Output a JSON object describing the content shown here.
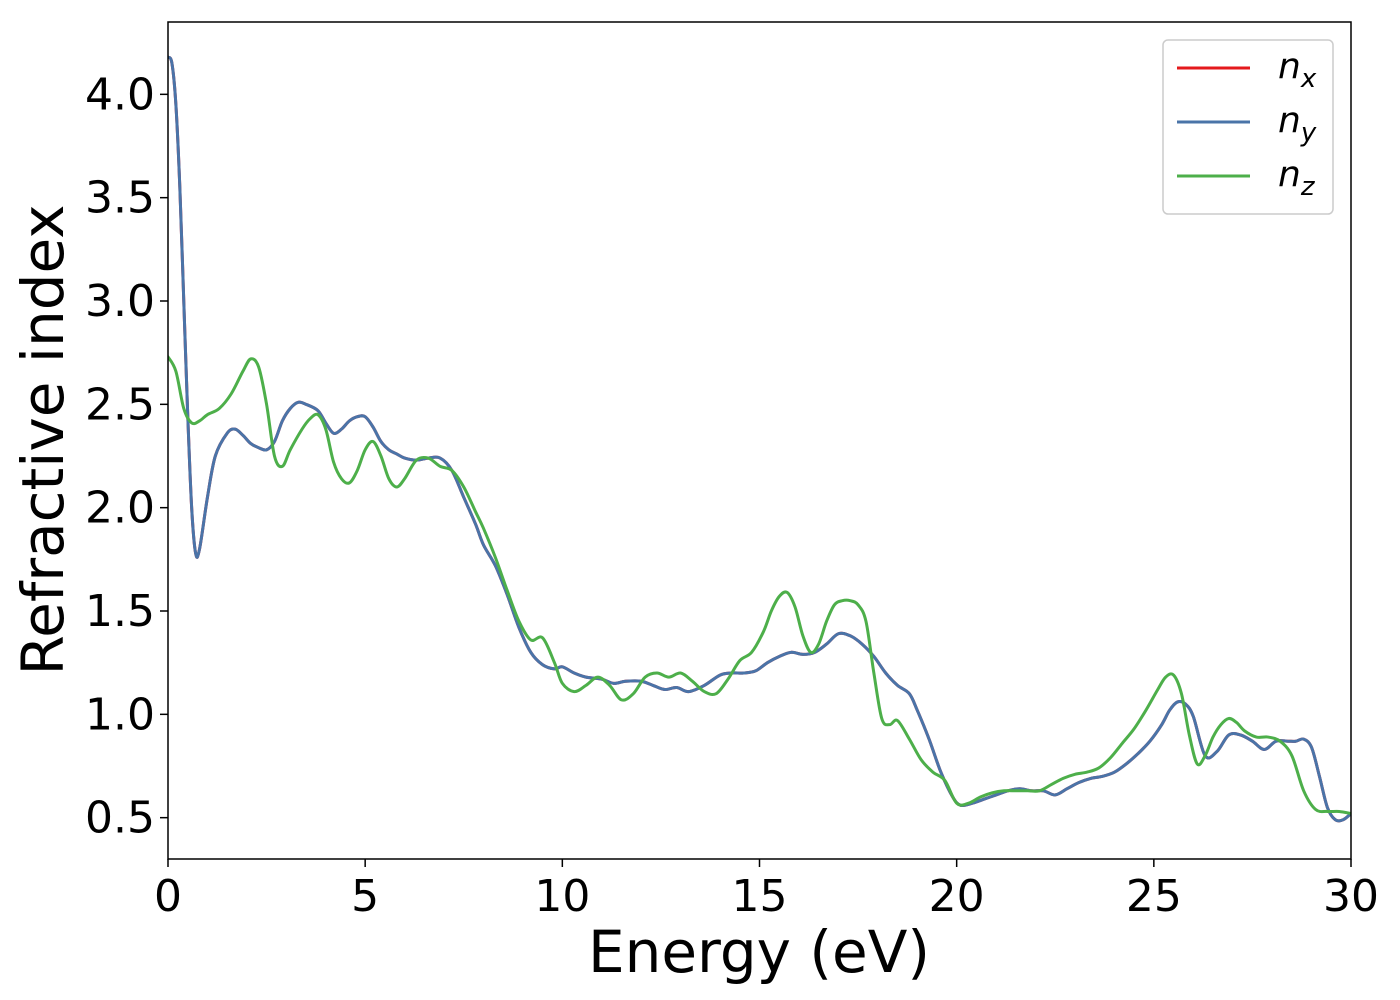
{
  "chart_data": {
    "type": "line",
    "title": "",
    "xlabel": "Energy (eV)",
    "ylabel": "Refractive index",
    "xlim": [
      0,
      30
    ],
    "ylim": [
      0.3,
      4.35
    ],
    "xticks": [
      0,
      5,
      10,
      15,
      20,
      25,
      30
    ],
    "yticks": [
      0.5,
      1.0,
      1.5,
      2.0,
      2.5,
      3.0,
      3.5,
      4.0
    ],
    "xtick_labels": [
      "0",
      "5",
      "10",
      "15",
      "20",
      "25",
      "30"
    ],
    "ytick_labels": [
      "0.5",
      "1.0",
      "1.5",
      "2.0",
      "2.5",
      "3.0",
      "3.5",
      "4.0"
    ],
    "grid": false,
    "legend": {
      "position": "top-right",
      "entries": [
        {
          "base": "n",
          "sub": "x",
          "color": "#e41a1c"
        },
        {
          "base": "n",
          "sub": "y",
          "color": "#4a74a8"
        },
        {
          "base": "n",
          "sub": "z",
          "color": "#4daf4a"
        }
      ]
    },
    "series": [
      {
        "name": "n_x",
        "color": "#e41a1c",
        "x": [
          0,
          0.1,
          0.2,
          0.3,
          0.4,
          0.5,
          0.6,
          0.7,
          0.8,
          1.0,
          1.2,
          1.5,
          1.7,
          1.9,
          2.1,
          2.3,
          2.5,
          2.7,
          2.9,
          3.1,
          3.3,
          3.5,
          3.8,
          4.0,
          4.2,
          4.4,
          4.6,
          4.8,
          5.0,
          5.2,
          5.4,
          5.6,
          5.8,
          6.0,
          6.3,
          6.6,
          6.9,
          7.2,
          7.5,
          7.8,
          8.0,
          8.3,
          8.6,
          8.9,
          9.2,
          9.5,
          9.8,
          10.0,
          10.3,
          10.6,
          11.0,
          11.3,
          11.6,
          12.0,
          12.3,
          12.6,
          12.9,
          13.2,
          13.6,
          14.0,
          14.3,
          14.6,
          14.9,
          15.2,
          15.5,
          15.8,
          16.1,
          16.4,
          16.7,
          17.0,
          17.3,
          17.6,
          17.9,
          18.2,
          18.5,
          18.8,
          19.0,
          19.3,
          19.6,
          19.9,
          20.1,
          20.4,
          20.7,
          21.0,
          21.3,
          21.6,
          21.9,
          22.2,
          22.5,
          22.8,
          23.1,
          23.4,
          23.7,
          24.0,
          24.3,
          24.6,
          24.9,
          25.2,
          25.4,
          25.6,
          25.8,
          26.0,
          26.3,
          26.6,
          26.9,
          27.2,
          27.5,
          27.8,
          28.1,
          28.4,
          28.6,
          28.8,
          29.0,
          29.2,
          29.4,
          29.6,
          29.8,
          30.0
        ],
        "y": [
          4.18,
          4.15,
          3.95,
          3.55,
          3.0,
          2.45,
          2.0,
          1.78,
          1.8,
          2.05,
          2.25,
          2.36,
          2.38,
          2.35,
          2.31,
          2.29,
          2.28,
          2.32,
          2.42,
          2.48,
          2.51,
          2.5,
          2.47,
          2.41,
          2.36,
          2.38,
          2.42,
          2.44,
          2.44,
          2.39,
          2.32,
          2.28,
          2.26,
          2.24,
          2.23,
          2.24,
          2.24,
          2.18,
          2.05,
          1.92,
          1.82,
          1.72,
          1.58,
          1.42,
          1.3,
          1.24,
          1.22,
          1.23,
          1.2,
          1.18,
          1.17,
          1.15,
          1.16,
          1.16,
          1.14,
          1.12,
          1.13,
          1.11,
          1.14,
          1.19,
          1.2,
          1.2,
          1.21,
          1.25,
          1.28,
          1.3,
          1.29,
          1.3,
          1.34,
          1.39,
          1.38,
          1.34,
          1.28,
          1.2,
          1.14,
          1.1,
          1.02,
          0.88,
          0.72,
          0.6,
          0.56,
          0.57,
          0.59,
          0.61,
          0.63,
          0.64,
          0.63,
          0.63,
          0.61,
          0.64,
          0.67,
          0.69,
          0.7,
          0.72,
          0.76,
          0.81,
          0.87,
          0.95,
          1.02,
          1.06,
          1.05,
          0.99,
          0.8,
          0.82,
          0.9,
          0.9,
          0.87,
          0.83,
          0.87,
          0.87,
          0.87,
          0.88,
          0.84,
          0.7,
          0.55,
          0.49,
          0.49,
          0.52
        ]
      },
      {
        "name": "n_y",
        "color": "#4a74a8",
        "x": [
          0,
          0.1,
          0.2,
          0.3,
          0.4,
          0.5,
          0.6,
          0.7,
          0.8,
          1.0,
          1.2,
          1.5,
          1.7,
          1.9,
          2.1,
          2.3,
          2.5,
          2.7,
          2.9,
          3.1,
          3.3,
          3.5,
          3.8,
          4.0,
          4.2,
          4.4,
          4.6,
          4.8,
          5.0,
          5.2,
          5.4,
          5.6,
          5.8,
          6.0,
          6.3,
          6.6,
          6.9,
          7.2,
          7.5,
          7.8,
          8.0,
          8.3,
          8.6,
          8.9,
          9.2,
          9.5,
          9.8,
          10.0,
          10.3,
          10.6,
          11.0,
          11.3,
          11.6,
          12.0,
          12.3,
          12.6,
          12.9,
          13.2,
          13.6,
          14.0,
          14.3,
          14.6,
          14.9,
          15.2,
          15.5,
          15.8,
          16.1,
          16.4,
          16.7,
          17.0,
          17.3,
          17.6,
          17.9,
          18.2,
          18.5,
          18.8,
          19.0,
          19.3,
          19.6,
          19.9,
          20.1,
          20.4,
          20.7,
          21.0,
          21.3,
          21.6,
          21.9,
          22.2,
          22.5,
          22.8,
          23.1,
          23.4,
          23.7,
          24.0,
          24.3,
          24.6,
          24.9,
          25.2,
          25.4,
          25.6,
          25.8,
          26.0,
          26.3,
          26.6,
          26.9,
          27.2,
          27.5,
          27.8,
          28.1,
          28.4,
          28.6,
          28.8,
          29.0,
          29.2,
          29.4,
          29.6,
          29.8,
          30.0
        ],
        "y": [
          4.18,
          4.15,
          3.95,
          3.55,
          3.0,
          2.45,
          2.0,
          1.78,
          1.8,
          2.05,
          2.25,
          2.36,
          2.38,
          2.35,
          2.31,
          2.29,
          2.28,
          2.32,
          2.42,
          2.48,
          2.51,
          2.5,
          2.47,
          2.41,
          2.36,
          2.38,
          2.42,
          2.44,
          2.44,
          2.39,
          2.32,
          2.28,
          2.26,
          2.24,
          2.23,
          2.24,
          2.24,
          2.18,
          2.05,
          1.92,
          1.82,
          1.72,
          1.58,
          1.42,
          1.3,
          1.24,
          1.22,
          1.23,
          1.2,
          1.18,
          1.17,
          1.15,
          1.16,
          1.16,
          1.14,
          1.12,
          1.13,
          1.11,
          1.14,
          1.19,
          1.2,
          1.2,
          1.21,
          1.25,
          1.28,
          1.3,
          1.29,
          1.3,
          1.34,
          1.39,
          1.38,
          1.34,
          1.28,
          1.2,
          1.14,
          1.1,
          1.02,
          0.88,
          0.72,
          0.6,
          0.56,
          0.57,
          0.59,
          0.61,
          0.63,
          0.64,
          0.63,
          0.63,
          0.61,
          0.64,
          0.67,
          0.69,
          0.7,
          0.72,
          0.76,
          0.81,
          0.87,
          0.95,
          1.02,
          1.06,
          1.05,
          0.99,
          0.8,
          0.82,
          0.9,
          0.9,
          0.87,
          0.83,
          0.87,
          0.87,
          0.87,
          0.88,
          0.84,
          0.7,
          0.55,
          0.49,
          0.49,
          0.52
        ]
      },
      {
        "name": "n_z",
        "color": "#4daf4a",
        "x": [
          0,
          0.2,
          0.4,
          0.6,
          0.8,
          1.0,
          1.3,
          1.6,
          1.9,
          2.1,
          2.3,
          2.5,
          2.7,
          2.9,
          3.1,
          3.4,
          3.6,
          3.8,
          4.0,
          4.2,
          4.4,
          4.6,
          4.8,
          5.0,
          5.2,
          5.4,
          5.6,
          5.8,
          6.0,
          6.3,
          6.6,
          6.9,
          7.2,
          7.5,
          7.8,
          8.0,
          8.3,
          8.6,
          8.9,
          9.2,
          9.5,
          9.8,
          10.0,
          10.3,
          10.6,
          10.9,
          11.2,
          11.5,
          11.8,
          12.1,
          12.4,
          12.7,
          13.0,
          13.3,
          13.6,
          13.9,
          14.2,
          14.5,
          14.8,
          15.1,
          15.3,
          15.5,
          15.7,
          15.9,
          16.1,
          16.3,
          16.5,
          16.7,
          16.9,
          17.1,
          17.3,
          17.5,
          17.7,
          17.9,
          18.1,
          18.3,
          18.5,
          18.8,
          19.1,
          19.4,
          19.7,
          20.0,
          20.3,
          20.6,
          20.9,
          21.2,
          21.5,
          21.8,
          22.1,
          22.4,
          22.7,
          23.0,
          23.3,
          23.6,
          23.9,
          24.2,
          24.5,
          24.8,
          25.1,
          25.3,
          25.5,
          25.7,
          25.9,
          26.1,
          26.3,
          26.5,
          26.7,
          26.9,
          27.1,
          27.3,
          27.6,
          27.9,
          28.2,
          28.5,
          28.8,
          29.1,
          29.4,
          29.7,
          30.0
        ],
        "y": [
          2.73,
          2.66,
          2.48,
          2.41,
          2.42,
          2.45,
          2.48,
          2.55,
          2.66,
          2.72,
          2.68,
          2.5,
          2.25,
          2.2,
          2.28,
          2.38,
          2.43,
          2.45,
          2.38,
          2.22,
          2.14,
          2.12,
          2.18,
          2.28,
          2.32,
          2.25,
          2.14,
          2.1,
          2.14,
          2.23,
          2.24,
          2.2,
          2.18,
          2.1,
          1.98,
          1.9,
          1.76,
          1.6,
          1.45,
          1.36,
          1.37,
          1.25,
          1.15,
          1.11,
          1.14,
          1.18,
          1.14,
          1.07,
          1.1,
          1.18,
          1.2,
          1.18,
          1.2,
          1.16,
          1.11,
          1.1,
          1.17,
          1.26,
          1.3,
          1.4,
          1.5,
          1.57,
          1.59,
          1.52,
          1.38,
          1.3,
          1.34,
          1.45,
          1.53,
          1.55,
          1.55,
          1.53,
          1.45,
          1.2,
          0.98,
          0.95,
          0.97,
          0.88,
          0.78,
          0.72,
          0.68,
          0.57,
          0.57,
          0.6,
          0.62,
          0.63,
          0.63,
          0.63,
          0.63,
          0.66,
          0.69,
          0.71,
          0.72,
          0.74,
          0.79,
          0.86,
          0.93,
          1.02,
          1.12,
          1.18,
          1.19,
          1.1,
          0.9,
          0.76,
          0.8,
          0.89,
          0.95,
          0.98,
          0.96,
          0.92,
          0.89,
          0.89,
          0.87,
          0.8,
          0.63,
          0.54,
          0.53,
          0.53,
          0.52
        ]
      }
    ]
  }
}
